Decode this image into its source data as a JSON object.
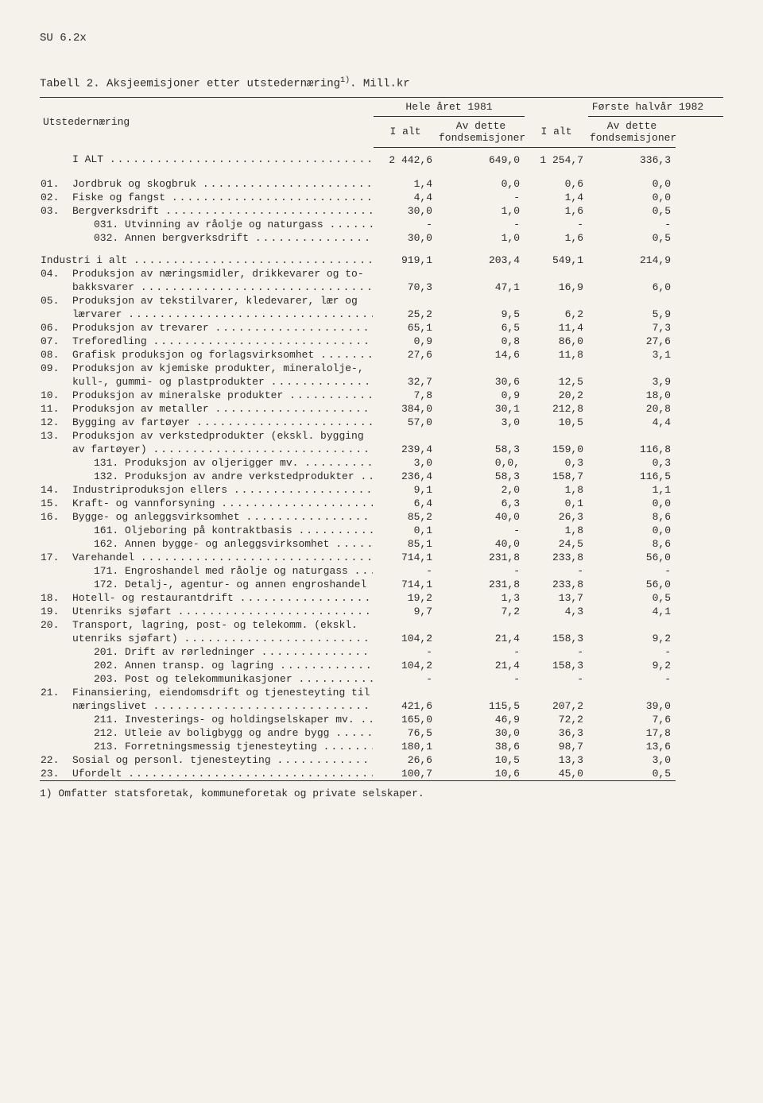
{
  "doc_id": "SU  6.2x",
  "title_prefix": "Tabell 2.  Aksjeemisjoner etter utstedernæring",
  "title_sup": "1)",
  "title_suffix": ".  Mill.kr",
  "header": {
    "row_label": "Utstedernæring",
    "group1": "Hele året 1981",
    "group2": "Første halvår 1982",
    "col_a": "I alt",
    "col_b_line1": "Av dette",
    "col_b_line2": "fondsemisjoner"
  },
  "total_row": {
    "label": "I ALT",
    "v": [
      "2 442,6",
      "649,0",
      "1 254,7",
      "336,3"
    ]
  },
  "rows": [
    {
      "code": "01.",
      "label": "Jordbruk og skogbruk",
      "v": [
        "1,4",
        "0,0",
        "0,6",
        "0,0"
      ]
    },
    {
      "code": "02.",
      "label": "Fiske og fangst",
      "v": [
        "4,4",
        "-",
        "1,4",
        "0,0"
      ]
    },
    {
      "code": "03.",
      "label": "Bergverksdrift",
      "v": [
        "30,0",
        "1,0",
        "1,6",
        "0,5"
      ]
    },
    {
      "code": "",
      "label": "031. Utvinning av råolje og naturgass",
      "indent": 1,
      "v": [
        "-",
        "-",
        "-",
        "-"
      ]
    },
    {
      "code": "",
      "label": "032. Annen bergverksdrift",
      "indent": 1,
      "v": [
        "30,0",
        "1,0",
        "1,6",
        "0,5"
      ],
      "gap_after": true
    },
    {
      "code": "",
      "label": "Industri i alt",
      "noindent": true,
      "v": [
        "919,1",
        "203,4",
        "549,1",
        "214,9"
      ]
    },
    {
      "code": "04.",
      "label_multi": [
        "Produksjon av næringsmidler, drikkevarer og to-",
        "bakksvarer"
      ],
      "v": [
        "70,3",
        "47,1",
        "16,9",
        "6,0"
      ]
    },
    {
      "code": "05.",
      "label_multi": [
        "Produksjon av tekstilvarer, kledevarer, lær og",
        "lærvarer"
      ],
      "v": [
        "25,2",
        "9,5",
        "6,2",
        "5,9"
      ]
    },
    {
      "code": "06.",
      "label": "Produksjon av trevarer",
      "v": [
        "65,1",
        "6,5",
        "11,4",
        "7,3"
      ]
    },
    {
      "code": "07.",
      "label": "Treforedling",
      "v": [
        "0,9",
        "0,8",
        "86,0",
        "27,6"
      ]
    },
    {
      "code": "08.",
      "label": "Grafisk produksjon og forlagsvirksomhet",
      "v": [
        "27,6",
        "14,6",
        "11,8",
        "3,1"
      ]
    },
    {
      "code": "09.",
      "label_multi": [
        "Produksjon av kjemiske produkter, mineralolje-,",
        "kull-, gummi- og plastprodukter"
      ],
      "v": [
        "32,7",
        "30,6",
        "12,5",
        "3,9"
      ]
    },
    {
      "code": "10.",
      "label": "Produksjon av mineralske produkter",
      "v": [
        "7,8",
        "0,9",
        "20,2",
        "18,0"
      ]
    },
    {
      "code": "11.",
      "label": "Produksjon av metaller",
      "v": [
        "384,0",
        "30,1",
        "212,8",
        "20,8"
      ]
    },
    {
      "code": "12.",
      "label": "Bygging av fartøyer",
      "v": [
        "57,0",
        "3,0",
        "10,5",
        "4,4"
      ]
    },
    {
      "code": "13.",
      "label_multi": [
        "Produksjon av verkstedprodukter (ekskl. bygging",
        "av fartøyer)"
      ],
      "v": [
        "239,4",
        "58,3",
        "159,0",
        "116,8"
      ]
    },
    {
      "code": "",
      "label": "131. Produksjon av oljerigger mv.",
      "indent": 1,
      "v": [
        "3,0",
        "0,0,",
        "0,3",
        "0,3"
      ]
    },
    {
      "code": "",
      "label": "132. Produksjon av andre verkstedprodukter",
      "indent": 1,
      "v": [
        "236,4",
        "58,3",
        "158,7",
        "116,5"
      ]
    },
    {
      "code": "14.",
      "label": "Industriproduksjon ellers",
      "v": [
        "9,1",
        "2,0",
        "1,8",
        "1,1"
      ]
    },
    {
      "code": "15.",
      "label": "Kraft- og vannforsyning",
      "v": [
        "6,4",
        "6,3",
        "0,1",
        "0,0"
      ]
    },
    {
      "code": "16.",
      "label": "Bygge- og anleggsvirksomhet",
      "v": [
        "85,2",
        "40,0",
        "26,3",
        "8,6"
      ]
    },
    {
      "code": "",
      "label": "161. Oljeboring på kontraktbasis",
      "indent": 1,
      "v": [
        "0,1",
        "-",
        "1,8",
        "0,0"
      ]
    },
    {
      "code": "",
      "label": "162. Annen bygge- og anleggsvirksomhet",
      "indent": 1,
      "v": [
        "85,1",
        "40,0",
        "24,5",
        "8,6"
      ]
    },
    {
      "code": "17.",
      "label": "Varehandel",
      "v": [
        "714,1",
        "231,8",
        "233,8",
        "56,0"
      ]
    },
    {
      "code": "",
      "label": "171. Engroshandel med råolje og naturgass",
      "indent": 1,
      "v": [
        "-",
        "-",
        "-",
        "-"
      ]
    },
    {
      "code": "",
      "label": "172. Detalj-, agentur- og annen engroshandel",
      "indent": 1,
      "enddots": "..",
      "v": [
        "714,1",
        "231,8",
        "233,8",
        "56,0"
      ]
    },
    {
      "code": "18.",
      "label": "Hotell- og restaurantdrift",
      "v": [
        "19,2",
        "1,3",
        "13,7",
        "0,5"
      ]
    },
    {
      "code": "19.",
      "label": "Utenriks sjøfart",
      "v": [
        "9,7",
        "7,2",
        "4,3",
        "4,1"
      ]
    },
    {
      "code": "20.",
      "label_multi": [
        "Transport, lagring, post- og telekomm. (ekskl.",
        "utenriks sjøfart)"
      ],
      "v": [
        "104,2",
        "21,4",
        "158,3",
        "9,2"
      ]
    },
    {
      "code": "",
      "label": "201. Drift av rørledninger",
      "indent": 1,
      "v": [
        "-",
        "-",
        "-",
        "-"
      ]
    },
    {
      "code": "",
      "label": "202. Annen transp. og lagring",
      "indent": 1,
      "v": [
        "104,2",
        "21,4",
        "158,3",
        "9,2"
      ]
    },
    {
      "code": "",
      "label": "203. Post og telekommunikasjoner",
      "indent": 1,
      "v": [
        "-",
        "-",
        "-",
        "-"
      ]
    },
    {
      "code": "21.",
      "label_multi": [
        "Finansiering, eiendomsdrift og tjenesteyting til",
        "næringslivet"
      ],
      "v": [
        "421,6",
        "115,5",
        "207,2",
        "39,0"
      ]
    },
    {
      "code": "",
      "label": "211. Investerings- og holdingselskaper mv.",
      "indent": 1,
      "v": [
        "165,0",
        "46,9",
        "72,2",
        "7,6"
      ]
    },
    {
      "code": "",
      "label": "212. Utleie av boligbygg og andre bygg",
      "indent": 1,
      "v": [
        "76,5",
        "30,0",
        "36,3",
        "17,8"
      ]
    },
    {
      "code": "",
      "label": "213. Forretningsmessig tjenesteyting",
      "indent": 1,
      "v": [
        "180,1",
        "38,6",
        "98,7",
        "13,6"
      ]
    },
    {
      "code": "22.",
      "label": "Sosial og personl. tjenesteyting",
      "v": [
        "26,6",
        "10,5",
        "13,3",
        "3,0"
      ]
    },
    {
      "code": "23.",
      "label": "Ufordelt",
      "v": [
        "100,7",
        "10,6",
        "45,0",
        "0,5"
      ]
    }
  ],
  "footnote": "1) Omfatter statsforetak, kommuneforetak og private selskaper."
}
